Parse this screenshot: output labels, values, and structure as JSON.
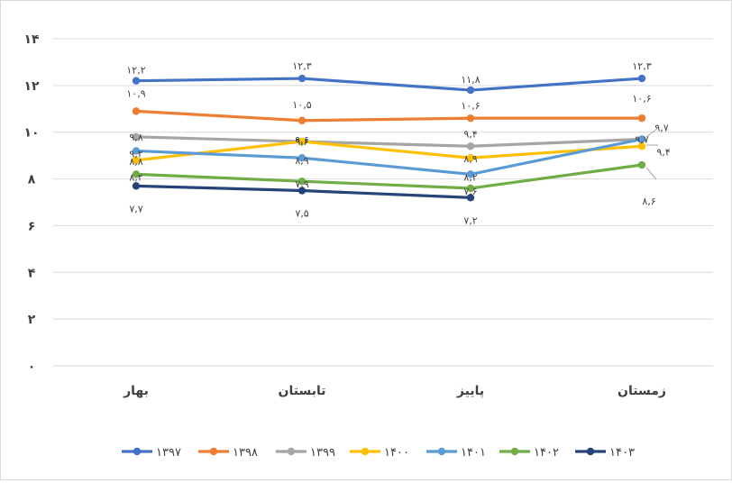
{
  "chart_data": {
    "type": "line",
    "categories": [
      "بهار",
      "تابستان",
      "پاییز",
      "زمستان"
    ],
    "ylim": [
      0,
      14
    ],
    "y_ticks": [
      0,
      2,
      4,
      6,
      8,
      10,
      12,
      14
    ],
    "y_tick_labels": [
      "۰",
      "۲",
      "۴",
      "۶",
      "۸",
      "۱۰",
      "۱۲",
      "۱۴"
    ],
    "grid": true,
    "legend_position": "bottom",
    "series": [
      {
        "name": "۱۳۹۷",
        "color": "#4472c4",
        "values": [
          12.2,
          12.3,
          11.8,
          12.3
        ],
        "labels": [
          "۱۲,۲",
          "۱۲,۳",
          "۱۱,۸",
          "۱۲,۳"
        ]
      },
      {
        "name": "۱۳۹۸",
        "color": "#ed7d31",
        "values": [
          10.9,
          10.5,
          10.6,
          10.6
        ],
        "labels": [
          "۱۰,۹",
          "۱۰,۵",
          "۱۰,۶",
          "۱۰,۶"
        ]
      },
      {
        "name": "۱۳۹۹",
        "color": "#a5a5a5",
        "values": [
          9.8,
          9.6,
          9.4,
          9.7
        ],
        "labels": [
          "۹,۸",
          "۹,۶",
          "۹,۴",
          "۹,۷"
        ]
      },
      {
        "name": "۱۴۰۰",
        "color": "#ffc000",
        "values": [
          8.8,
          9.6,
          8.9,
          9.4
        ],
        "labels": [
          "۸,۸",
          "۹,۶",
          "۸,۹",
          "۹,۴"
        ]
      },
      {
        "name": "۱۴۰۱",
        "color": "#5b9bd5",
        "values": [
          9.2,
          8.9,
          8.2,
          9.7
        ],
        "labels": [
          "۹,۲",
          "۸,۹",
          "۸,۲",
          "۹,۷"
        ]
      },
      {
        "name": "۱۴۰۲",
        "color": "#70ad47",
        "values": [
          8.2,
          7.9,
          7.6,
          8.6
        ],
        "labels": [
          "۸,۲",
          "۷,۹",
          "۷,۶",
          "۸,۶"
        ]
      },
      {
        "name": "۱۴۰۳",
        "color": "#264478",
        "values": [
          7.7,
          7.5,
          7.2,
          null
        ],
        "labels": [
          "۷,۷",
          "۷,۵",
          "۷,۲",
          ""
        ]
      }
    ]
  }
}
